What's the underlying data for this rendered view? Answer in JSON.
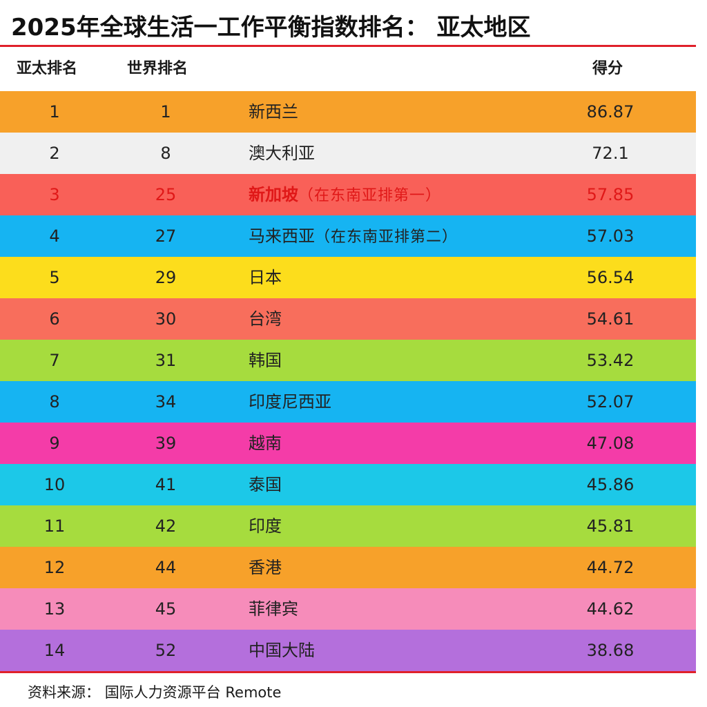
{
  "title": "2025年全球生活一工作平衡指数排名： 亚太地区",
  "header": {
    "region_rank": "亚太排名",
    "world_rank": "世界排名",
    "score": "得分"
  },
  "rows": [
    {
      "region_rank": "1",
      "world_rank": "1",
      "name": "新西兰",
      "note": "",
      "score": "86.87",
      "color": "#f7a12a"
    },
    {
      "region_rank": "2",
      "world_rank": "8",
      "name": "澳大利亚",
      "note": "",
      "score": "72.1",
      "color": "#f0f0f0"
    },
    {
      "region_rank": "3",
      "world_rank": "25",
      "name": "新加坡",
      "note": "（在东南亚排第一）",
      "score": "57.85",
      "color": "#f96058",
      "highlight": true
    },
    {
      "region_rank": "4",
      "world_rank": "27",
      "name": "马来西亚",
      "note": "（在东南亚排第二）",
      "score": "57.03",
      "color": "#16b4f2"
    },
    {
      "region_rank": "5",
      "world_rank": "29",
      "name": "日本",
      "note": "",
      "score": "56.54",
      "color": "#fcdd1c"
    },
    {
      "region_rank": "6",
      "world_rank": "30",
      "name": "台湾",
      "note": "",
      "score": "54.61",
      "color": "#f86e5c"
    },
    {
      "region_rank": "7",
      "world_rank": "31",
      "name": "韩国",
      "note": "",
      "score": "53.42",
      "color": "#a6dc3e"
    },
    {
      "region_rank": "8",
      "world_rank": "34",
      "name": "印度尼西亚",
      "note": "",
      "score": "52.07",
      "color": "#16b4f2"
    },
    {
      "region_rank": "9",
      "world_rank": "39",
      "name": "越南",
      "note": "",
      "score": "47.08",
      "color": "#f43ca8"
    },
    {
      "region_rank": "10",
      "world_rank": "41",
      "name": "泰国",
      "note": "",
      "score": "45.86",
      "color": "#1cc8e8"
    },
    {
      "region_rank": "11",
      "world_rank": "42",
      "name": "印度",
      "note": "",
      "score": "45.81",
      "color": "#a6dc3e"
    },
    {
      "region_rank": "12",
      "world_rank": "44",
      "name": "香港",
      "note": "",
      "score": "44.72",
      "color": "#f7a12a"
    },
    {
      "region_rank": "13",
      "world_rank": "45",
      "name": "菲律宾",
      "note": "",
      "score": "44.62",
      "color": "#f68cba"
    },
    {
      "region_rank": "14",
      "world_rank": "52",
      "name": "中国大陆",
      "note": "",
      "score": "38.68",
      "color": "#b46fdc"
    }
  ],
  "source": {
    "label": "资料来源：",
    "text": "国际人力资源平台",
    "latin": "Remote"
  },
  "colors": {
    "rule": "#e0202a",
    "highlight_text": "#e01818"
  }
}
